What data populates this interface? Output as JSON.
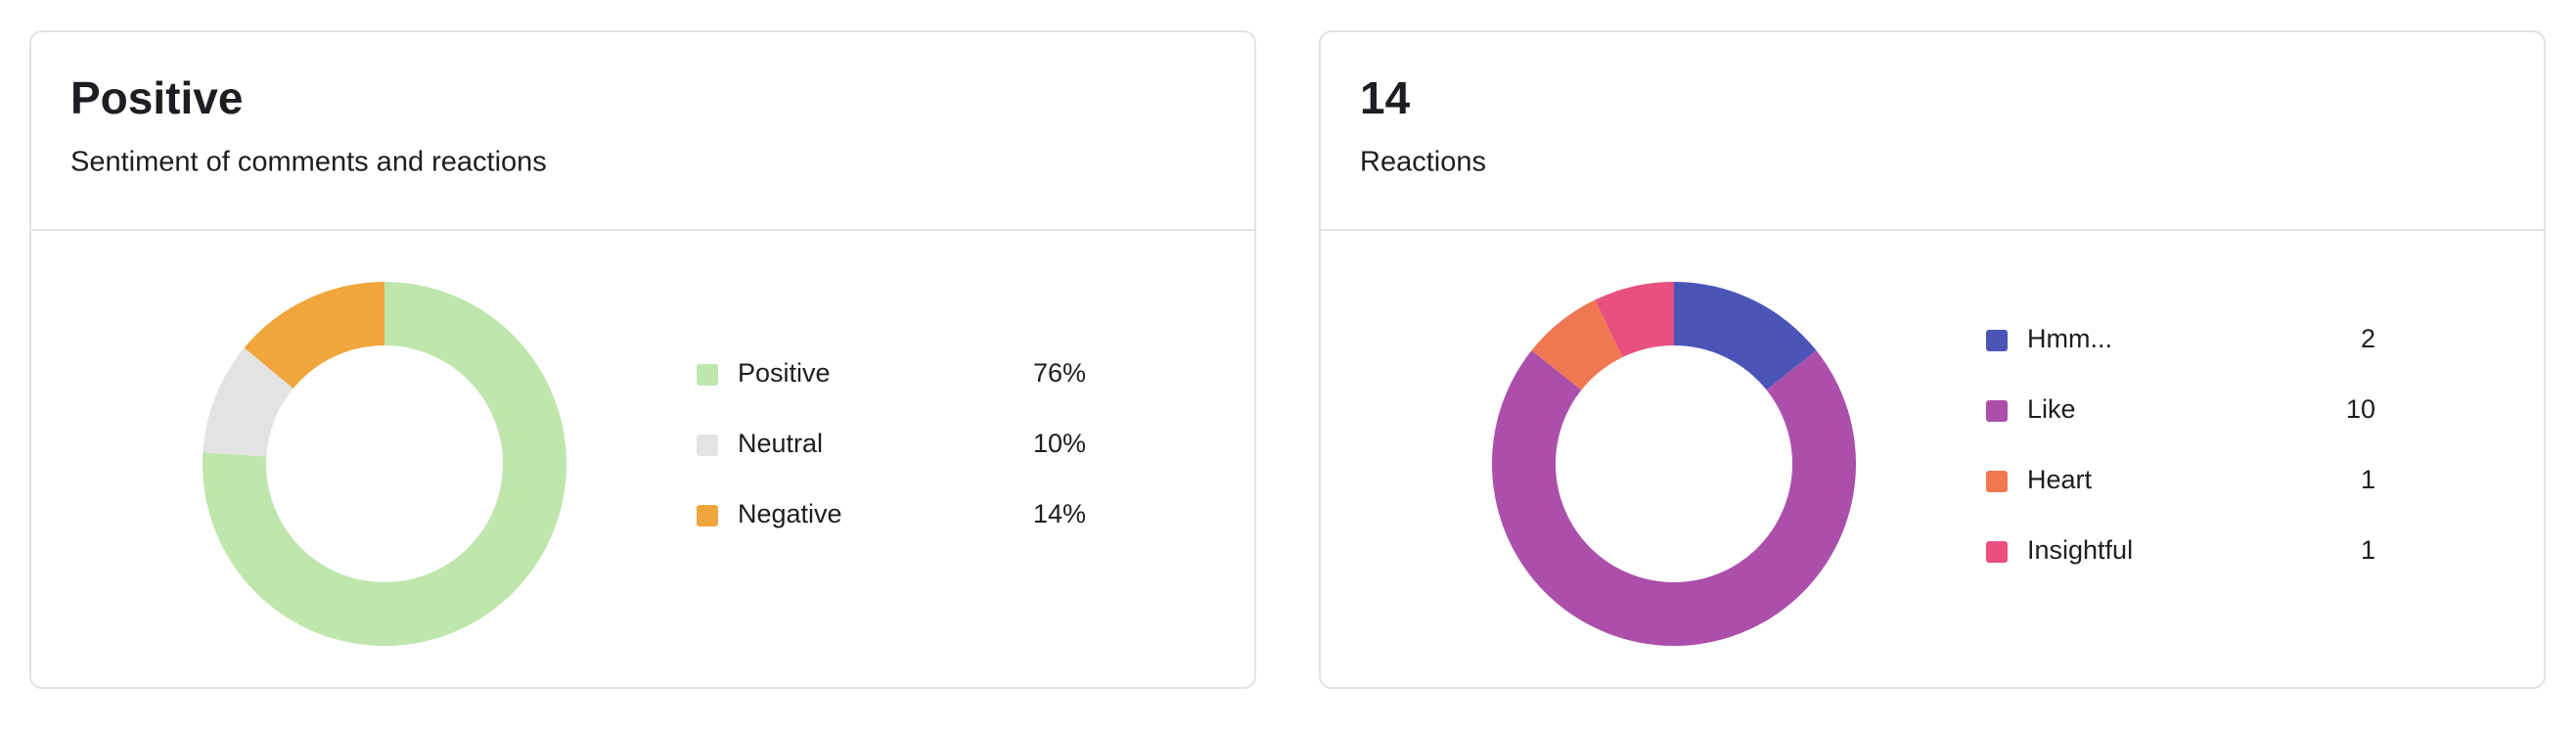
{
  "chart_data": [
    {
      "type": "pie",
      "title": "Positive",
      "subtitle": "Sentiment of comments and reactions",
      "categories": [
        "Positive",
        "Neutral",
        "Negative"
      ],
      "values": [
        76,
        10,
        14
      ],
      "value_labels": [
        "76%",
        "10%",
        "14%"
      ],
      "colors": [
        "#bfe6ad",
        "#e3e3e3",
        "#f0a63d"
      ]
    },
    {
      "type": "pie",
      "title": 14,
      "subtitle": "Reactions",
      "categories": [
        "Hmm...",
        "Like",
        "Heart",
        "Insightful"
      ],
      "values": [
        2,
        10,
        1,
        1
      ],
      "colors": [
        "#4b55b8",
        "#ac4fab",
        "#ef7752",
        "#e8507e"
      ]
    }
  ]
}
